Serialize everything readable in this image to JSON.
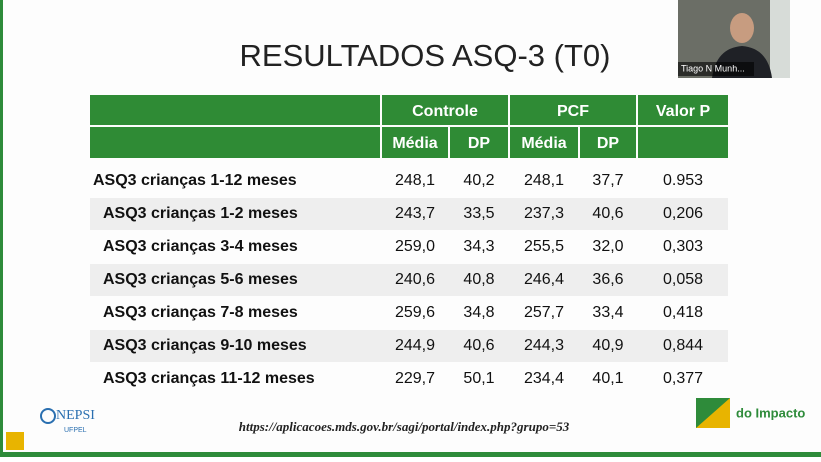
{
  "slide": {
    "title": "RESULTADOS ASQ-3 (T0)",
    "table": {
      "group_headers": [
        "Controle",
        "PCF",
        "Valor P"
      ],
      "sub_headers": [
        "Média",
        "DP",
        "Média",
        "DP"
      ],
      "rows": [
        [
          "ASQ3 crianças 1-12 meses",
          "248,1",
          "40,2",
          "248,1",
          "37,7",
          "0.953"
        ],
        [
          "ASQ3 crianças 1-2 meses",
          "243,7",
          "33,5",
          "237,3",
          "40,6",
          "0,206"
        ],
        [
          "ASQ3 crianças 3-4 meses",
          "259,0",
          "34,3",
          "255,5",
          "32,0",
          "0,303"
        ],
        [
          "ASQ3 crianças 5-6 meses",
          "240,6",
          "40,8",
          "246,4",
          "36,6",
          "0,058"
        ],
        [
          "ASQ3 crianças 7-8 meses",
          "259,6",
          "34,8",
          "257,7",
          "33,4",
          "0,418"
        ],
        [
          "ASQ3 crianças 9-10 meses",
          "244,9",
          "40,6",
          "244,3",
          "40,9",
          "0,844"
        ],
        [
          "ASQ3 crianças 11-12 meses",
          "229,7",
          "50,1",
          "234,4",
          "40,1",
          "0,377"
        ]
      ]
    },
    "source_url": "https://aplicacoes.mds.gov.br/sagi/portal/index.php?grupo=53",
    "logo_left": {
      "name": "NEPSI",
      "sub": "UFPEL"
    },
    "logo_right": "do Impacto"
  },
  "video": {
    "participant_name": "Tiago N Munh..."
  }
}
